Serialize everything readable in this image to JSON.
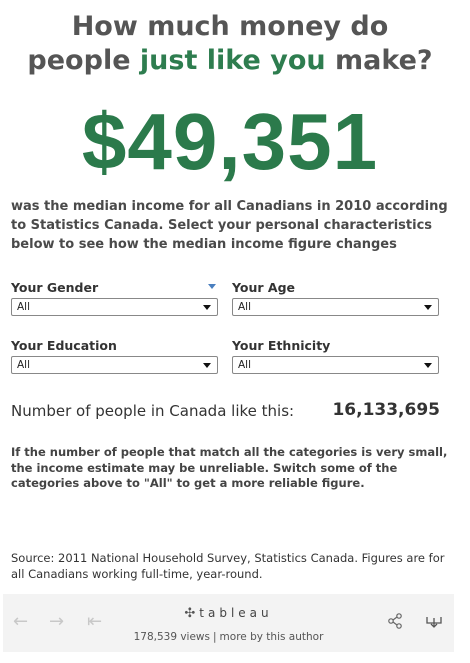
{
  "header": {
    "title_part1": "How much money do",
    "title_part2a": "people ",
    "title_highlight": "just like you",
    "title_part2b": " make?",
    "highlight_color": "#2e7d4f"
  },
  "median": {
    "value": "$49,351",
    "color": "#2b7a4b"
  },
  "description": "was the median income for all Canadians in 2010 according to Statistics Canada. Select your personal characteristics below to see how the median income figure changes",
  "filters": {
    "gender": {
      "label": "Your Gender",
      "value": "All"
    },
    "age": {
      "label": "Your Age",
      "value": "All"
    },
    "education": {
      "label": "Your Education",
      "value": "All"
    },
    "ethnicity": {
      "label": "Your Ethnicity",
      "value": "All"
    }
  },
  "count": {
    "label": "Number of people in Canada like this:",
    "value": "16,133,695"
  },
  "warning": "If the number of people that match all the categories is very small, the income estimate may be unreliable. Switch some of the categories above to \"All\" to get a more reliable figure.",
  "source": "Source: 2011 National Household Survey, Statistics Canada. Figures are for all Canadians working full-time, year-round.",
  "footer": {
    "brand": "tableau",
    "views": "178,539 views",
    "separator": "|",
    "more_link": "more by this author",
    "icons": {
      "back": "back-arrow-icon",
      "forward": "forward-arrow-icon",
      "first": "revert-first-icon",
      "logo": "tableau-logo-icon",
      "share": "share-icon",
      "download": "download-icon"
    }
  }
}
